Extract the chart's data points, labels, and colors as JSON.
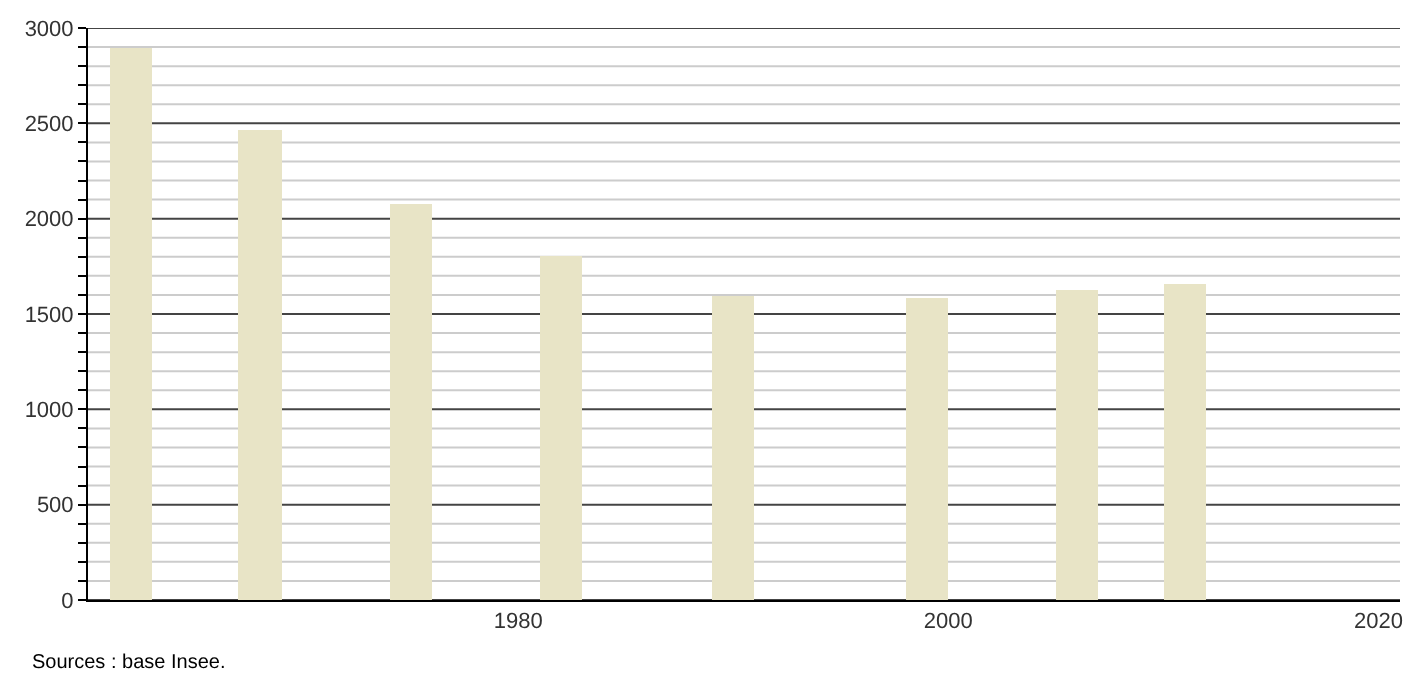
{
  "chart_data": {
    "type": "bar",
    "x": [
      1962,
      1968,
      1975,
      1982,
      1990,
      1999,
      2006,
      2011
    ],
    "values": [
      2900,
      2470,
      2080,
      1800,
      1590,
      1580,
      1630,
      1660
    ],
    "color": "#e8e4c6",
    "xlim": [
      1960,
      2021
    ],
    "xticks": [
      1980,
      2000,
      2020
    ],
    "ylim": [
      0,
      3000
    ],
    "yticks": [
      0,
      {
        "value": 100,
        "label": null
      },
      {
        "value": 200,
        "label": null
      },
      {
        "value": 300,
        "label": null
      },
      {
        "value": 400,
        "label": null
      },
      500,
      {
        "value": 600,
        "label": null
      },
      {
        "value": 700,
        "label": null
      },
      {
        "value": 800,
        "label": null
      },
      {
        "value": 900,
        "label": null
      },
      1000,
      {
        "value": 1100,
        "label": null
      },
      {
        "value": 1200,
        "label": null
      },
      {
        "value": 1300,
        "label": null
      },
      {
        "value": 1400,
        "label": null
      },
      1500,
      {
        "value": 1600,
        "label": null
      },
      {
        "value": 1700,
        "label": null
      },
      {
        "value": 1800,
        "label": null
      },
      {
        "value": 1900,
        "label": null
      },
      2000,
      {
        "value": 2100,
        "label": null
      },
      {
        "value": 2200,
        "label": null
      },
      {
        "value": 2300,
        "label": null
      },
      {
        "value": 2400,
        "label": null
      },
      2500,
      {
        "value": 2600,
        "label": null
      },
      {
        "value": 2700,
        "label": null
      },
      {
        "value": 2800,
        "label": null
      },
      {
        "value": 2900,
        "label": null
      },
      3000
    ],
    "grid": "y",
    "annotations": [
      "Sources : base Insee."
    ]
  }
}
